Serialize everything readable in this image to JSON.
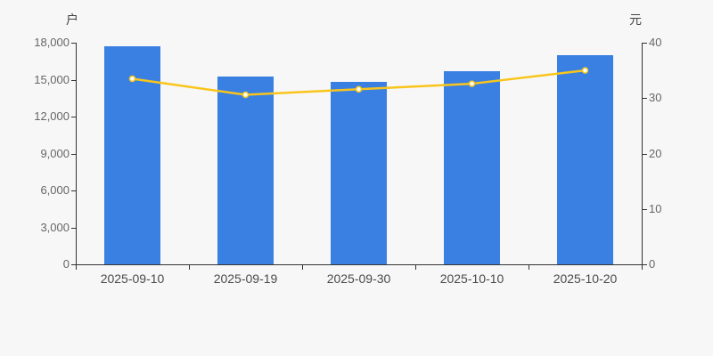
{
  "chart_data": {
    "type": "bar+line",
    "title": "",
    "categories": [
      "2025-09-10",
      "2025-09-19",
      "2025-09-30",
      "2025-10-10",
      "2025-10-20"
    ],
    "series": [
      {
        "name": "户",
        "type": "bar",
        "yaxis": "left",
        "values": [
          17700,
          15250,
          14800,
          15700,
          17000
        ],
        "color": "#3a80e2"
      },
      {
        "name": "元",
        "type": "line",
        "yaxis": "right",
        "values": [
          33.5,
          30.6,
          31.6,
          32.6,
          35.0
        ],
        "color": "#f9c51b",
        "point_fill": "#ffffff"
      }
    ],
    "left_axis": {
      "label": "户",
      "min": 0,
      "max": 18000,
      "tick_labels": [
        "0",
        "3,000",
        "6,000",
        "9,000",
        "12,000",
        "15,000",
        "18,000"
      ]
    },
    "right_axis": {
      "label": "元",
      "min": 0,
      "max": 40,
      "tick_labels": [
        "0",
        "10",
        "20",
        "30",
        "40"
      ]
    },
    "grid": false,
    "legend_position": "none",
    "colors": {
      "background": "#f7f7f7",
      "axis_line": "#333333",
      "ytick_text": "#666666",
      "xtick_text": "#4a4a4a"
    }
  }
}
